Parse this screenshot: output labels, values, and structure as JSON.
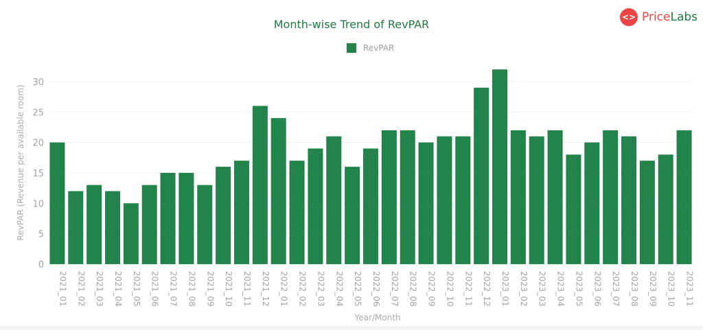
{
  "logo": {
    "text_a": "Price",
    "text_b": "Labs",
    "icon": "code-brackets-icon",
    "color_a": "#ef4444",
    "color_b": "#1f7a3f"
  },
  "chart_data": {
    "type": "bar",
    "title": "Month-wise Trend of RevPAR",
    "xlabel": "Year/Month",
    "ylabel": "RevPAR (Revenue per available room)",
    "ylim": [
      0,
      32
    ],
    "yticks": [
      0,
      5,
      10,
      15,
      20,
      25,
      30
    ],
    "grid": true,
    "legend_position": "top-center",
    "color": "#22844a",
    "categories": [
      "2021_01",
      "2021_02",
      "2021_03",
      "2021_04",
      "2021_05",
      "2021_06",
      "2021_07",
      "2021_08",
      "2021_09",
      "2021_10",
      "2021_11",
      "2021_12",
      "2022_01",
      "2022_02",
      "2022_03",
      "2022_04",
      "2022_05",
      "2022_06",
      "2022_07",
      "2022_08",
      "2022_09",
      "2022_10",
      "2022_11",
      "2022_12",
      "2023_01",
      "2023_02",
      "2023_03",
      "2023_04",
      "2023_05",
      "2023_06",
      "2023_07",
      "2023_08",
      "2023_09",
      "2023_10",
      "2023_11"
    ],
    "series": [
      {
        "name": "RevPAR",
        "values": [
          20,
          12,
          13,
          12,
          10,
          13,
          15,
          15,
          13,
          16,
          17,
          26,
          24,
          17,
          19,
          21,
          16,
          19,
          22,
          22,
          20,
          21,
          21,
          29,
          32,
          22,
          21,
          22,
          18,
          20,
          22,
          21,
          17,
          18,
          22
        ]
      }
    ]
  }
}
